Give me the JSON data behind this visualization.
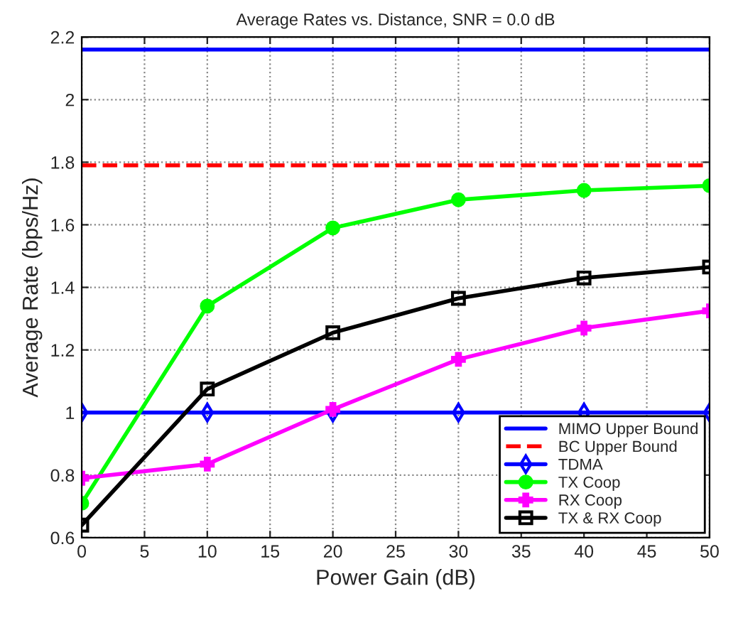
{
  "chart_data": {
    "type": "line",
    "title": "Average Rates vs. Distance, SNR = 0.0 dB",
    "xlabel": "Power Gain (dB)",
    "ylabel": "Average Rate (bps/Hz)",
    "x": [
      0,
      10,
      20,
      30,
      40,
      50
    ],
    "series": [
      {
        "name": "TDMA",
        "color": "#0000ff",
        "values": [
          1.0,
          1.0,
          1.0,
          1.0,
          1.0,
          1.0
        ],
        "marker": "diamond",
        "line_style": "solid"
      },
      {
        "name": "TX Coop",
        "color": "#00ff00",
        "values": [
          0.71,
          1.34,
          1.59,
          1.68,
          1.71,
          1.725
        ],
        "marker": "circle",
        "line_style": "solid"
      },
      {
        "name": "RX Coop",
        "color": "#ff00ff",
        "values": [
          0.79,
          0.835,
          1.01,
          1.17,
          1.27,
          1.325
        ],
        "marker": "cross",
        "line_style": "solid"
      },
      {
        "name": "TX & RX Coop",
        "color": "#000000",
        "values": [
          0.64,
          1.075,
          1.255,
          1.365,
          1.43,
          1.465
        ],
        "marker": "square",
        "line_style": "solid"
      }
    ],
    "xlim": [
      0,
      50
    ],
    "xticks": [
      0,
      5,
      10,
      15,
      20,
      25,
      30,
      35,
      40,
      45,
      50
    ],
    "ylim": [
      0.6,
      2.2
    ],
    "yticks": [
      0.6,
      0.8,
      1,
      1.2,
      1.4,
      1.6,
      1.8,
      2,
      2.2
    ],
    "ref_lines": [
      {
        "axis": "y",
        "value": 2.16,
        "label": "MIMO Upper Bound",
        "color": "#0000ff",
        "line_style": "solid"
      },
      {
        "axis": "y",
        "value": 1.79,
        "label": "BC Upper Bound",
        "color": "#ff0000",
        "line_style": "dashed"
      }
    ],
    "grid": true,
    "legend": "bottom right"
  }
}
